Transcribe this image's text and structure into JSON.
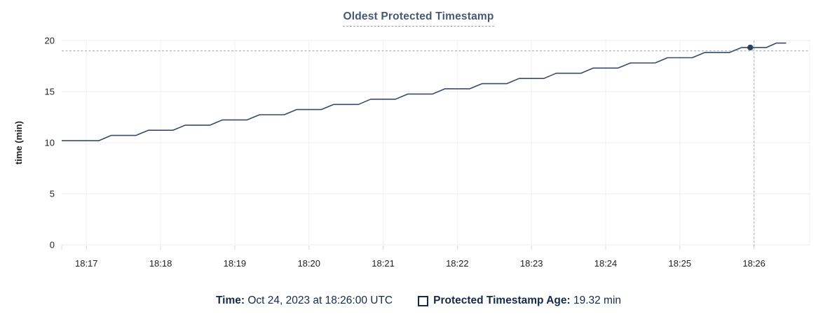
{
  "title": "Oldest Protected Timestamp",
  "footer": {
    "time_label": "Time:",
    "time_value": " Oct 24, 2023 at 18:26:00 UTC",
    "series_label": "Protected Timestamp Age:",
    "series_value": " 19.32 min"
  },
  "colors": {
    "title": "#475872",
    "line": "#394b66",
    "dot": "#2f4160",
    "crosshair": "#a7bac3",
    "grid_h": "#ececec",
    "grid_v": "#f1f1f1",
    "tick": "#d9d9d9",
    "axis_text": "#222222",
    "footer_text": "#16294c"
  },
  "chart_data": {
    "type": "line",
    "title": "Oldest Protected Timestamp",
    "xlabel": "",
    "ylabel": "time (min)",
    "ylim": [
      0,
      20
    ],
    "y_ticks": [
      0,
      5,
      10,
      15,
      20
    ],
    "x_domain_sec": [
      -20,
      585
    ],
    "x_ticks": [
      {
        "t": 0,
        "label": "18:17"
      },
      {
        "t": 60,
        "label": "18:18"
      },
      {
        "t": 120,
        "label": "18:19"
      },
      {
        "t": 180,
        "label": "18:20"
      },
      {
        "t": 240,
        "label": "18:21"
      },
      {
        "t": 300,
        "label": "18:22"
      },
      {
        "t": 360,
        "label": "18:23"
      },
      {
        "t": 420,
        "label": "18:24"
      },
      {
        "t": 480,
        "label": "18:25"
      },
      {
        "t": 540,
        "label": "18:26"
      }
    ],
    "grid": true,
    "legend_position": "bottom",
    "series_name": "Protected Timestamp Age",
    "points": [
      [
        -20,
        10.2
      ],
      [
        10,
        10.2
      ],
      [
        20,
        10.71
      ],
      [
        40,
        10.71
      ],
      [
        50,
        11.22
      ],
      [
        70,
        11.22
      ],
      [
        80,
        11.72
      ],
      [
        100,
        11.72
      ],
      [
        110,
        12.23
      ],
      [
        130,
        12.23
      ],
      [
        140,
        12.74
      ],
      [
        160,
        12.74
      ],
      [
        170,
        13.25
      ],
      [
        190,
        13.25
      ],
      [
        200,
        13.75
      ],
      [
        220,
        13.75
      ],
      [
        230,
        14.26
      ],
      [
        250,
        14.26
      ],
      [
        260,
        14.77
      ],
      [
        280,
        14.77
      ],
      [
        290,
        15.28
      ],
      [
        310,
        15.28
      ],
      [
        320,
        15.78
      ],
      [
        340,
        15.78
      ],
      [
        350,
        16.29
      ],
      [
        370,
        16.29
      ],
      [
        380,
        16.8
      ],
      [
        400,
        16.8
      ],
      [
        410,
        17.31
      ],
      [
        430,
        17.31
      ],
      [
        440,
        17.81
      ],
      [
        460,
        17.81
      ],
      [
        470,
        18.32
      ],
      [
        490,
        18.32
      ],
      [
        500,
        18.83
      ],
      [
        520,
        18.83
      ],
      [
        530,
        19.32
      ],
      [
        550,
        19.32
      ],
      [
        558,
        19.75
      ],
      [
        566,
        19.75
      ]
    ],
    "hover": {
      "t": 540,
      "dot_t": 537,
      "value": 19.32,
      "hline_value": 19.0,
      "time_label": "18:26:00"
    }
  }
}
